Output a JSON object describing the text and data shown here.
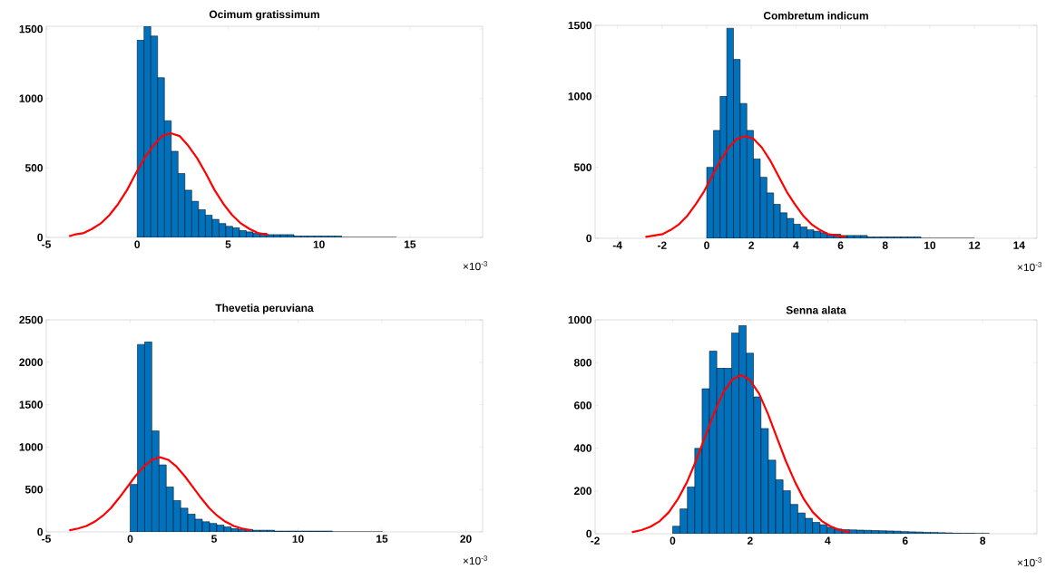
{
  "chart_data": [
    {
      "type": "histogram",
      "title": "Ocimum gratissimum",
      "xlim": [
        -5,
        19
      ],
      "ylim": [
        0,
        1520
      ],
      "xticks": [
        -5,
        0,
        5,
        10,
        15
      ],
      "yticks": [
        0,
        500,
        1000,
        1500
      ],
      "annotations": [
        "×10$^{-3}$"
      ],
      "series": [
        {
          "type": "histogram",
          "color": "#0072bd",
          "bins": [
            0,
            0.375,
            0.75,
            1.125,
            1.5,
            1.875,
            2.25,
            2.625,
            3,
            3.375,
            3.75,
            4.125,
            4.5,
            4.875,
            5.25,
            5.625,
            6,
            6.375,
            6.75,
            7.125,
            7.5,
            7.875,
            8.25,
            8.625,
            9,
            9.375,
            9.75,
            10.125,
            10.5,
            10.875,
            11.25,
            11.625,
            12,
            12.375,
            12.75,
            13.125,
            13.5,
            13.875,
            14.25
          ],
          "values": [
            1420,
            1520,
            1450,
            1150,
            840,
            620,
            460,
            340,
            260,
            200,
            160,
            130,
            100,
            80,
            70,
            50,
            40,
            30,
            30,
            20,
            20,
            20,
            20,
            10,
            10,
            10,
            10,
            10,
            10,
            10,
            0,
            0,
            0,
            0,
            0,
            0,
            0,
            0
          ]
        },
        {
          "type": "line",
          "color": "#ff0000",
          "x": [
            -3.71,
            -3.46,
            -2.98,
            -2.49,
            -2.01,
            -1.53,
            -1.05,
            -0.56,
            -0.08,
            0.4,
            0.89,
            1.37,
            1.85,
            2.33,
            2.81,
            3.3,
            3.78,
            4.26,
            4.75,
            5.23,
            5.71,
            6.19,
            6.68,
            7.16
          ],
          "values": [
            10,
            20,
            30,
            60,
            100,
            160,
            240,
            340,
            460,
            570,
            660,
            730,
            750,
            730,
            660,
            570,
            460,
            340,
            240,
            160,
            100,
            60,
            30,
            20
          ]
        }
      ]
    },
    {
      "type": "histogram",
      "title": "Combretum indicum",
      "xlim": [
        -5,
        14.8
      ],
      "ylim": [
        0,
        1500
      ],
      "xticks": [
        -4,
        -2,
        0,
        2,
        4,
        6,
        8,
        10,
        12,
        14
      ],
      "yticks": [
        0,
        500,
        1000,
        1500
      ],
      "annotations": [
        "×10$^{-3}$"
      ],
      "series": [
        {
          "type": "histogram",
          "color": "#0072bd",
          "bins": [
            0,
            0.3,
            0.6,
            0.9,
            1.2,
            1.5,
            1.8,
            2.1,
            2.4,
            2.7,
            3,
            3.3,
            3.6,
            3.9,
            4.2,
            4.5,
            4.8,
            5.1,
            5.4,
            5.7,
            6,
            6.3,
            6.6,
            6.9,
            7.2,
            7.5,
            7.8,
            8.1,
            8.4,
            8.7,
            9,
            9.3,
            9.6,
            9.9,
            10.2,
            10.5,
            10.8,
            11.1,
            11.4,
            11.7,
            12
          ],
          "values": [
            500,
            760,
            1000,
            1480,
            1260,
            950,
            760,
            560,
            430,
            320,
            240,
            180,
            140,
            100,
            80,
            60,
            50,
            40,
            30,
            30,
            20,
            20,
            20,
            20,
            10,
            10,
            10,
            10,
            10,
            10,
            10,
            10,
            0,
            0,
            0,
            0,
            0,
            0,
            0,
            0
          ]
        },
        {
          "type": "line",
          "color": "#ff0000",
          "x": [
            -2.71,
            -2.34,
            -1.97,
            -1.6,
            -1.23,
            -0.86,
            -0.49,
            -0.12,
            0.25,
            0.62,
            0.99,
            1.36,
            1.73,
            2.1,
            2.47,
            2.84,
            3.21,
            3.58,
            3.95,
            4.32,
            4.69,
            5.06,
            5.43,
            5.8,
            6.17
          ],
          "values": [
            10,
            20,
            30,
            60,
            100,
            160,
            240,
            330,
            440,
            550,
            640,
            700,
            720,
            700,
            640,
            550,
            440,
            330,
            240,
            160,
            100,
            60,
            30,
            20,
            10
          ]
        }
      ]
    },
    {
      "type": "histogram",
      "title": "Thevetia peruviana",
      "xlim": [
        -5,
        21
      ],
      "ylim": [
        0,
        2500
      ],
      "xticks": [
        -5,
        0,
        5,
        10,
        15,
        20
      ],
      "yticks": [
        0,
        500,
        1000,
        1500,
        2000,
        2500
      ],
      "annotations": [
        "×10$^{-3}$"
      ],
      "series": [
        {
          "type": "histogram",
          "color": "#0072bd",
          "bins": [
            0,
            0.43,
            0.86,
            1.29,
            1.72,
            2.15,
            2.58,
            3.01,
            3.44,
            3.87,
            4.3,
            4.73,
            5.16,
            5.59,
            6.02,
            6.45,
            6.88,
            7.31,
            7.74,
            8.17,
            8.6,
            9.03,
            9.46,
            9.89,
            10.32,
            10.75,
            11.18,
            11.61,
            12.04,
            12.47,
            12.9,
            13.33,
            13.76,
            14.19,
            14.62,
            15.05
          ],
          "values": [
            560,
            2210,
            2240,
            1190,
            790,
            530,
            370,
            280,
            210,
            150,
            120,
            100,
            80,
            60,
            40,
            30,
            30,
            20,
            20,
            20,
            10,
            10,
            10,
            10,
            10,
            10,
            10,
            10,
            0,
            0,
            0,
            0,
            0,
            0,
            0
          ]
        },
        {
          "type": "line",
          "color": "#ff0000",
          "x": [
            -3.58,
            -3.1,
            -2.61,
            -2.12,
            -1.63,
            -1.15,
            -0.66,
            -0.17,
            0.32,
            0.81,
            1.29,
            1.78,
            2.27,
            2.76,
            3.24,
            3.73,
            4.22,
            4.71,
            5.19,
            5.68,
            6.17,
            6.66,
            7.14
          ],
          "values": [
            20,
            40,
            70,
            120,
            190,
            280,
            400,
            530,
            660,
            770,
            850,
            880,
            850,
            770,
            660,
            530,
            400,
            280,
            190,
            120,
            70,
            40,
            20
          ]
        }
      ]
    },
    {
      "type": "histogram",
      "title": "Senna alata",
      "xlim": [
        -2,
        9.4
      ],
      "ylim": [
        0,
        1000
      ],
      "xticks": [
        -2,
        0,
        2,
        4,
        6,
        8
      ],
      "yticks": [
        0,
        200,
        400,
        600,
        800,
        1000
      ],
      "annotations": [
        "×10$^{-3}$"
      ],
      "series": [
        {
          "type": "histogram",
          "color": "#0072bd",
          "bins": [
            0,
            0.19,
            0.38,
            0.57,
            0.76,
            0.95,
            1.14,
            1.33,
            1.52,
            1.71,
            1.9,
            2.09,
            2.28,
            2.47,
            2.66,
            2.85,
            3.04,
            3.23,
            3.42,
            3.61,
            3.8,
            3.99,
            4.18,
            4.37,
            4.56,
            4.75,
            4.94,
            5.13,
            5.32,
            5.51,
            5.7,
            5.89,
            6.08,
            6.27,
            6.46,
            6.65,
            6.84,
            7.03,
            7.22,
            7.41,
            7.6,
            7.79,
            7.98,
            8.17
          ],
          "values": [
            35,
            116,
            219,
            399,
            678,
            854,
            774,
            774,
            939,
            973,
            844,
            640,
            492,
            344,
            252,
            201,
            137,
            97,
            72,
            53,
            42,
            30,
            22,
            19,
            18,
            17,
            16,
            15,
            14,
            13,
            12,
            10,
            9,
            8,
            7,
            6,
            5,
            4,
            3,
            2,
            2,
            1,
            1
          ]
        },
        {
          "type": "line",
          "color": "#ff0000",
          "x": [
            -1.03,
            -0.8,
            -0.57,
            -0.33,
            -0.1,
            0.13,
            0.37,
            0.6,
            0.83,
            1.06,
            1.29,
            1.53,
            1.76,
            1.99,
            2.23,
            2.46,
            2.69,
            2.92,
            3.16,
            3.39,
            3.62,
            3.85,
            4.09,
            4.32,
            4.55
          ],
          "values": [
            8,
            17,
            33,
            59,
            100,
            160,
            241,
            340,
            450,
            560,
            655,
            719,
            742,
            719,
            655,
            560,
            450,
            340,
            241,
            160,
            100,
            59,
            33,
            17,
            8
          ]
        }
      ]
    }
  ]
}
